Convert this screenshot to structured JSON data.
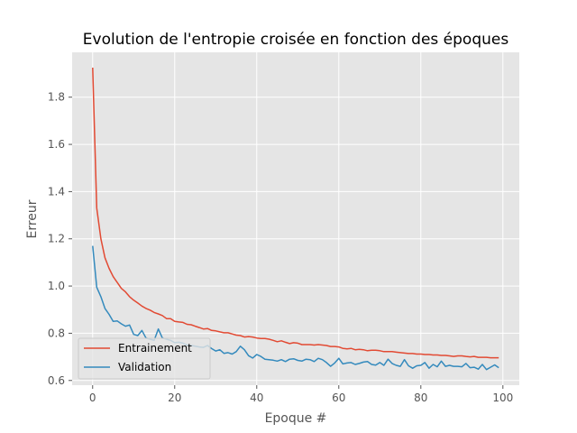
{
  "chart_data": {
    "type": "line",
    "title": "Evolution de l'entropie croisée en fonction des époques",
    "xlabel": "Epoque #",
    "ylabel": "Erreur",
    "xlim": [
      -5,
      104
    ],
    "ylim": [
      0.58,
      1.99
    ],
    "xticks": [
      "0",
      "20",
      "40",
      "60",
      "80",
      "100"
    ],
    "yticks": [
      "0.6",
      "0.8",
      "1.0",
      "1.2",
      "1.4",
      "1.6",
      "1.8"
    ],
    "grid": true,
    "legend_position": "lower-left",
    "style": "ggplot",
    "series": [
      {
        "name": "Entrainement",
        "color": "#E24A33",
        "values": [
          1.925,
          1.33,
          1.2,
          1.12,
          1.075,
          1.04,
          1.015,
          0.99,
          0.975,
          0.955,
          0.94,
          0.928,
          0.915,
          0.905,
          0.898,
          0.888,
          0.882,
          0.875,
          0.862,
          0.862,
          0.85,
          0.848,
          0.846,
          0.838,
          0.836,
          0.83,
          0.824,
          0.818,
          0.82,
          0.812,
          0.81,
          0.806,
          0.802,
          0.802,
          0.797,
          0.792,
          0.79,
          0.784,
          0.786,
          0.784,
          0.78,
          0.778,
          0.778,
          0.775,
          0.77,
          0.764,
          0.768,
          0.762,
          0.756,
          0.76,
          0.758,
          0.752,
          0.752,
          0.752,
          0.75,
          0.752,
          0.75,
          0.748,
          0.744,
          0.744,
          0.742,
          0.736,
          0.734,
          0.736,
          0.73,
          0.732,
          0.73,
          0.726,
          0.728,
          0.728,
          0.726,
          0.722,
          0.722,
          0.722,
          0.72,
          0.718,
          0.716,
          0.714,
          0.714,
          0.712,
          0.712,
          0.71,
          0.71,
          0.708,
          0.708,
          0.706,
          0.706,
          0.704,
          0.702,
          0.704,
          0.704,
          0.702,
          0.7,
          0.702,
          0.698,
          0.698,
          0.698,
          0.696,
          0.696,
          0.696
        ]
      },
      {
        "name": "Validation",
        "color": "#348ABD",
        "values": [
          1.17,
          0.995,
          0.955,
          0.905,
          0.88,
          0.85,
          0.852,
          0.84,
          0.83,
          0.835,
          0.795,
          0.79,
          0.812,
          0.78,
          0.775,
          0.77,
          0.818,
          0.78,
          0.775,
          0.77,
          0.76,
          0.762,
          0.758,
          0.75,
          0.748,
          0.745,
          0.742,
          0.74,
          0.748,
          0.735,
          0.725,
          0.73,
          0.715,
          0.718,
          0.712,
          0.722,
          0.745,
          0.73,
          0.705,
          0.695,
          0.71,
          0.702,
          0.69,
          0.688,
          0.686,
          0.682,
          0.688,
          0.68,
          0.69,
          0.692,
          0.685,
          0.682,
          0.69,
          0.688,
          0.68,
          0.694,
          0.688,
          0.676,
          0.66,
          0.674,
          0.694,
          0.67,
          0.674,
          0.676,
          0.668,
          0.672,
          0.678,
          0.68,
          0.668,
          0.665,
          0.676,
          0.664,
          0.69,
          0.672,
          0.664,
          0.66,
          0.688,
          0.662,
          0.652,
          0.662,
          0.664,
          0.676,
          0.652,
          0.668,
          0.658,
          0.682,
          0.66,
          0.664,
          0.66,
          0.66,
          0.658,
          0.672,
          0.654,
          0.656,
          0.648,
          0.668,
          0.646,
          0.656,
          0.666,
          0.654
        ]
      }
    ]
  }
}
